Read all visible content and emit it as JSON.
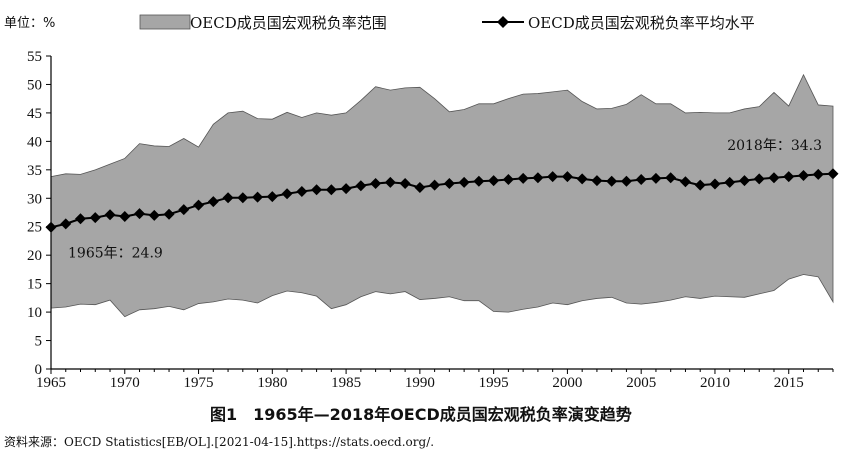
{
  "unit_label": "单位：%",
  "legend": {
    "range_label": "OECD成员国宏观税负率范围",
    "avg_label": "OECD成员国宏观税负率平均水平"
  },
  "figure_caption": "图1　1965年—2018年OECD成员国宏观税负率演变趋势",
  "source": "资料来源：OECD Statistics[EB/OL].[2021-04-15].https://stats.oecd.org/.",
  "colors": {
    "range_fill": "#a6a6a6",
    "avg_line": "#000000"
  },
  "chart_data": {
    "type": "area",
    "ylabel": "",
    "xlabel": "",
    "xlim": [
      1965,
      2018
    ],
    "ylim": [
      0,
      55
    ],
    "xticks": [
      1965,
      1970,
      1975,
      1980,
      1985,
      1990,
      1995,
      2000,
      2005,
      2010,
      2015
    ],
    "yticks": [
      0,
      5,
      10,
      15,
      20,
      25,
      30,
      35,
      40,
      45,
      50,
      55
    ],
    "grid": false,
    "legend_position": "top",
    "x": [
      1965,
      1966,
      1967,
      1968,
      1969,
      1970,
      1971,
      1972,
      1973,
      1974,
      1975,
      1976,
      1977,
      1978,
      1979,
      1980,
      1981,
      1982,
      1983,
      1984,
      1985,
      1986,
      1987,
      1988,
      1989,
      1990,
      1991,
      1992,
      1993,
      1994,
      1995,
      1996,
      1997,
      1998,
      1999,
      2000,
      2001,
      2002,
      2003,
      2004,
      2005,
      2006,
      2007,
      2008,
      2009,
      2010,
      2011,
      2012,
      2013,
      2014,
      2015,
      2016,
      2017,
      2018
    ],
    "series": [
      {
        "name": "OECD成员国宏观税负率范围",
        "kind": "range",
        "max": [
          33.8,
          34.3,
          34.2,
          35.0,
          36.0,
          37.0,
          39.6,
          39.2,
          39.1,
          40.5,
          39.0,
          43.0,
          45.0,
          45.3,
          44.0,
          43.9,
          45.1,
          44.2,
          45.0,
          44.6,
          45.0,
          47.2,
          49.6,
          49.0,
          49.4,
          49.5,
          47.5,
          45.2,
          45.6,
          46.6,
          46.6,
          47.5,
          48.3,
          48.4,
          48.7,
          49.0,
          47.0,
          45.7,
          45.8,
          46.5,
          48.2,
          46.6,
          46.6,
          45.0,
          45.1,
          45.0,
          45.0,
          45.7,
          46.1,
          48.6,
          46.2,
          51.7,
          46.4,
          46.2
        ],
        "min": [
          10.7,
          10.9,
          11.4,
          11.3,
          12.1,
          9.2,
          10.4,
          10.6,
          11.0,
          10.4,
          11.5,
          11.8,
          12.3,
          12.1,
          11.6,
          12.9,
          13.7,
          13.4,
          12.8,
          10.6,
          11.3,
          12.7,
          13.6,
          13.2,
          13.6,
          12.2,
          12.4,
          12.7,
          12.0,
          12.0,
          10.1,
          10.0,
          10.5,
          10.9,
          11.6,
          11.3,
          12.0,
          12.4,
          12.6,
          11.6,
          11.4,
          11.7,
          12.1,
          12.7,
          12.4,
          12.8,
          12.7,
          12.6,
          13.2,
          13.8,
          15.8,
          16.6,
          16.2,
          11.8
        ]
      },
      {
        "name": "OECD成员国宏观税负率平均水平",
        "kind": "line",
        "values": [
          24.9,
          25.5,
          26.4,
          26.6,
          27.1,
          26.8,
          27.3,
          27.0,
          27.2,
          28.0,
          28.8,
          29.4,
          30.1,
          30.1,
          30.2,
          30.3,
          30.8,
          31.2,
          31.5,
          31.5,
          31.7,
          32.2,
          32.6,
          32.8,
          32.6,
          31.9,
          32.3,
          32.6,
          32.8,
          33.0,
          33.1,
          33.3,
          33.5,
          33.6,
          33.8,
          33.8,
          33.4,
          33.1,
          33.0,
          33.0,
          33.3,
          33.5,
          33.6,
          32.9,
          32.3,
          32.5,
          32.8,
          33.1,
          33.4,
          33.6,
          33.8,
          34.0,
          34.2,
          34.3
        ]
      }
    ],
    "annotations": [
      {
        "x": 1965,
        "text": "1965年：24.9"
      },
      {
        "x": 2018,
        "text": "2018年：34.3"
      }
    ]
  }
}
